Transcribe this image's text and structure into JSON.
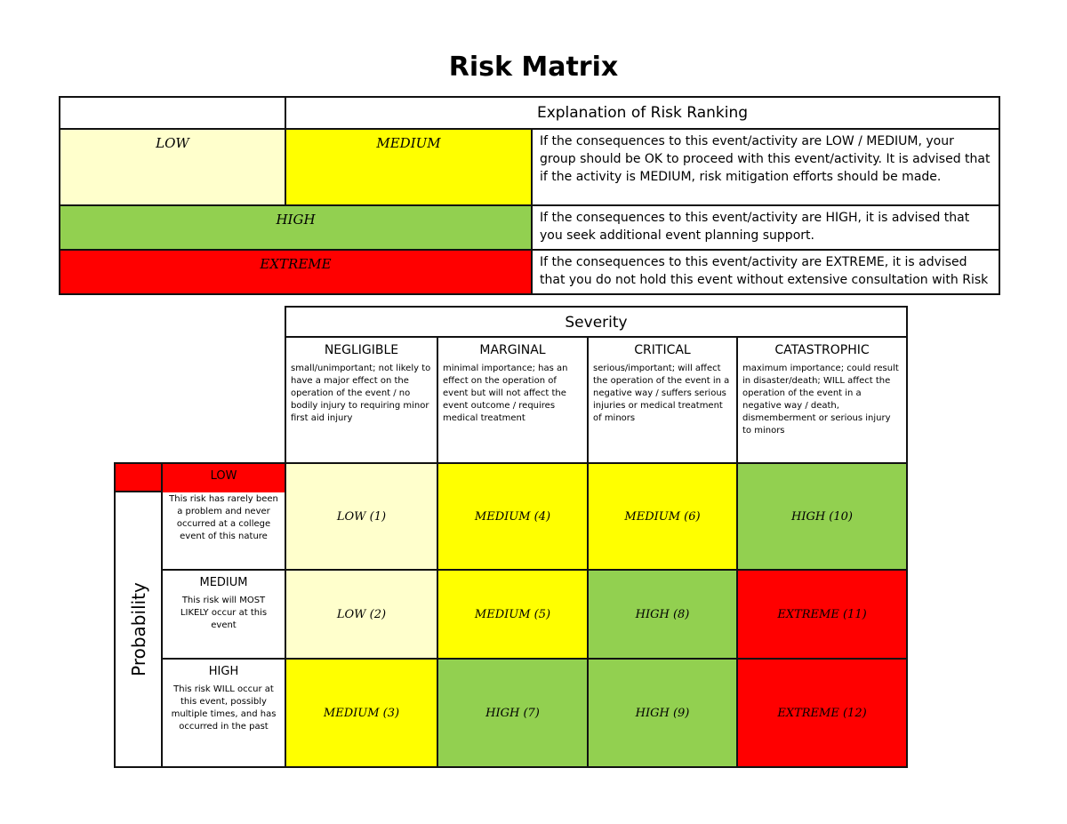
{
  "title": "Risk Matrix",
  "colors": {
    "low": "#ffffcc",
    "medium": "#ffff00",
    "high": "#92d050",
    "extreme": "#ff0000"
  },
  "explanation": {
    "header": "Explanation of Risk Ranking",
    "levels": {
      "low": "LOW",
      "medium": "MEDIUM",
      "high": "HIGH",
      "extreme": "EXTREME"
    },
    "texts": [
      "If the consequences to this event/activity are LOW / MEDIUM, your group should be OK to proceed with this event/activity. It is advised that if the activity is MEDIUM, risk mitigation efforts should be made.",
      "If the consequences to this event/activity are HIGH, it is advised that you seek additional event planning support.",
      "If the consequences to this event/activity are EXTREME, it is advised that you do not hold this event without extensive consultation with Risk"
    ]
  },
  "matrix": {
    "severity_label": "Severity",
    "probability_label": "Probability",
    "severity": [
      {
        "label": "NEGLIGIBLE",
        "desc": "small/unimportant; not likely to have a major effect on the operation of the event / no bodily injury to requiring minor first aid injury"
      },
      {
        "label": "MARGINAL",
        "desc": "minimal importance; has an effect on the operation of event but will not affect the event outcome / requires medical treatment"
      },
      {
        "label": "CRITICAL",
        "desc": "serious/important; will affect the operation of the event in a negative way / suffers serious injuries or medical treatment of minors"
      },
      {
        "label": "CATASTROPHIC",
        "desc": "maximum importance; could result in disaster/death; WILL affect the operation of the event in a negative way / death, dismemberment or serious injury to minors"
      }
    ],
    "probability": [
      {
        "label": "LOW",
        "desc": "This risk has rarely been a problem and never occurred at a college event of this nature"
      },
      {
        "label": "MEDIUM",
        "desc": "This risk will MOST LIKELY occur at this event"
      },
      {
        "label": "HIGH",
        "desc": "This risk WILL occur at this event, possibly multiple times, and has occurred in the past"
      }
    ],
    "cells": [
      [
        {
          "text": "LOW (1)",
          "level": "low"
        },
        {
          "text": "MEDIUM (4)",
          "level": "medium"
        },
        {
          "text": "MEDIUM (6)",
          "level": "medium"
        },
        {
          "text": "HIGH (10)",
          "level": "high"
        }
      ],
      [
        {
          "text": "LOW (2)",
          "level": "low"
        },
        {
          "text": "MEDIUM (5)",
          "level": "medium"
        },
        {
          "text": "HIGH (8)",
          "level": "high"
        },
        {
          "text": "EXTREME (11)",
          "level": "extreme"
        }
      ],
      [
        {
          "text": "MEDIUM (3)",
          "level": "medium"
        },
        {
          "text": "HIGH (7)",
          "level": "high"
        },
        {
          "text": "HIGH (9)",
          "level": "high"
        },
        {
          "text": "EXTREME (12)",
          "level": "extreme"
        }
      ]
    ]
  }
}
